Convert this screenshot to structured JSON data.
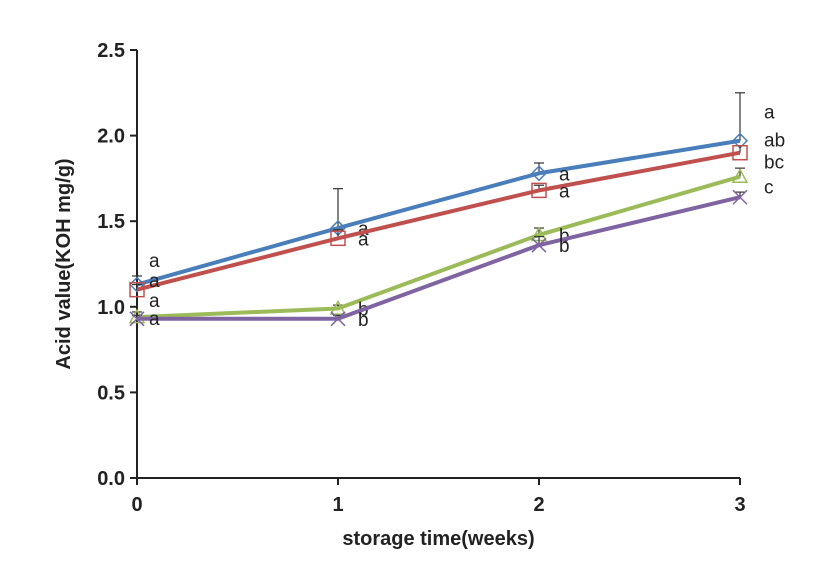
{
  "chart_data": {
    "type": "line",
    "xlabel": "storage time(weeks)",
    "ylabel": "Acid value(KOH  mg/g)",
    "x": [
      0,
      1,
      2,
      3
    ],
    "xlim": [
      0,
      3
    ],
    "ylim": [
      0,
      2.5
    ],
    "x_ticks": [
      "0",
      "1",
      "2",
      "3"
    ],
    "y_ticks": [
      "0.0",
      "0.5",
      "1.0",
      "1.5",
      "2.0",
      "2.5"
    ],
    "grid": false,
    "legend": "none",
    "series": [
      {
        "color": "#4a7ebb",
        "marker": "diamond",
        "values": [
          1.13,
          1.46,
          1.78,
          1.97
        ],
        "errors": [
          0.05,
          0.23,
          0.06,
          0.28
        ],
        "labels": [
          "a",
          "a",
          "a",
          "a"
        ]
      },
      {
        "color": "#c0504d",
        "marker": "square",
        "values": [
          1.1,
          1.4,
          1.68,
          1.9
        ],
        "errors": [
          0.03,
          0.05,
          0.03,
          0.04
        ],
        "labels": [
          "a",
          "a",
          "a",
          "ab"
        ]
      },
      {
        "color": "#9bbb59",
        "marker": "triangle",
        "values": [
          0.94,
          0.99,
          1.42,
          1.76
        ],
        "errors": [
          0.03,
          0.02,
          0.04,
          0.05
        ],
        "labels": [
          "a",
          "b",
          "b",
          "bc"
        ]
      },
      {
        "color": "#8064a2",
        "marker": "x",
        "values": [
          0.93,
          0.93,
          1.36,
          1.64
        ],
        "errors": [
          0.02,
          0.02,
          0.05,
          0.03
        ],
        "labels": [
          "a",
          "b",
          "b",
          "c"
        ]
      }
    ]
  }
}
